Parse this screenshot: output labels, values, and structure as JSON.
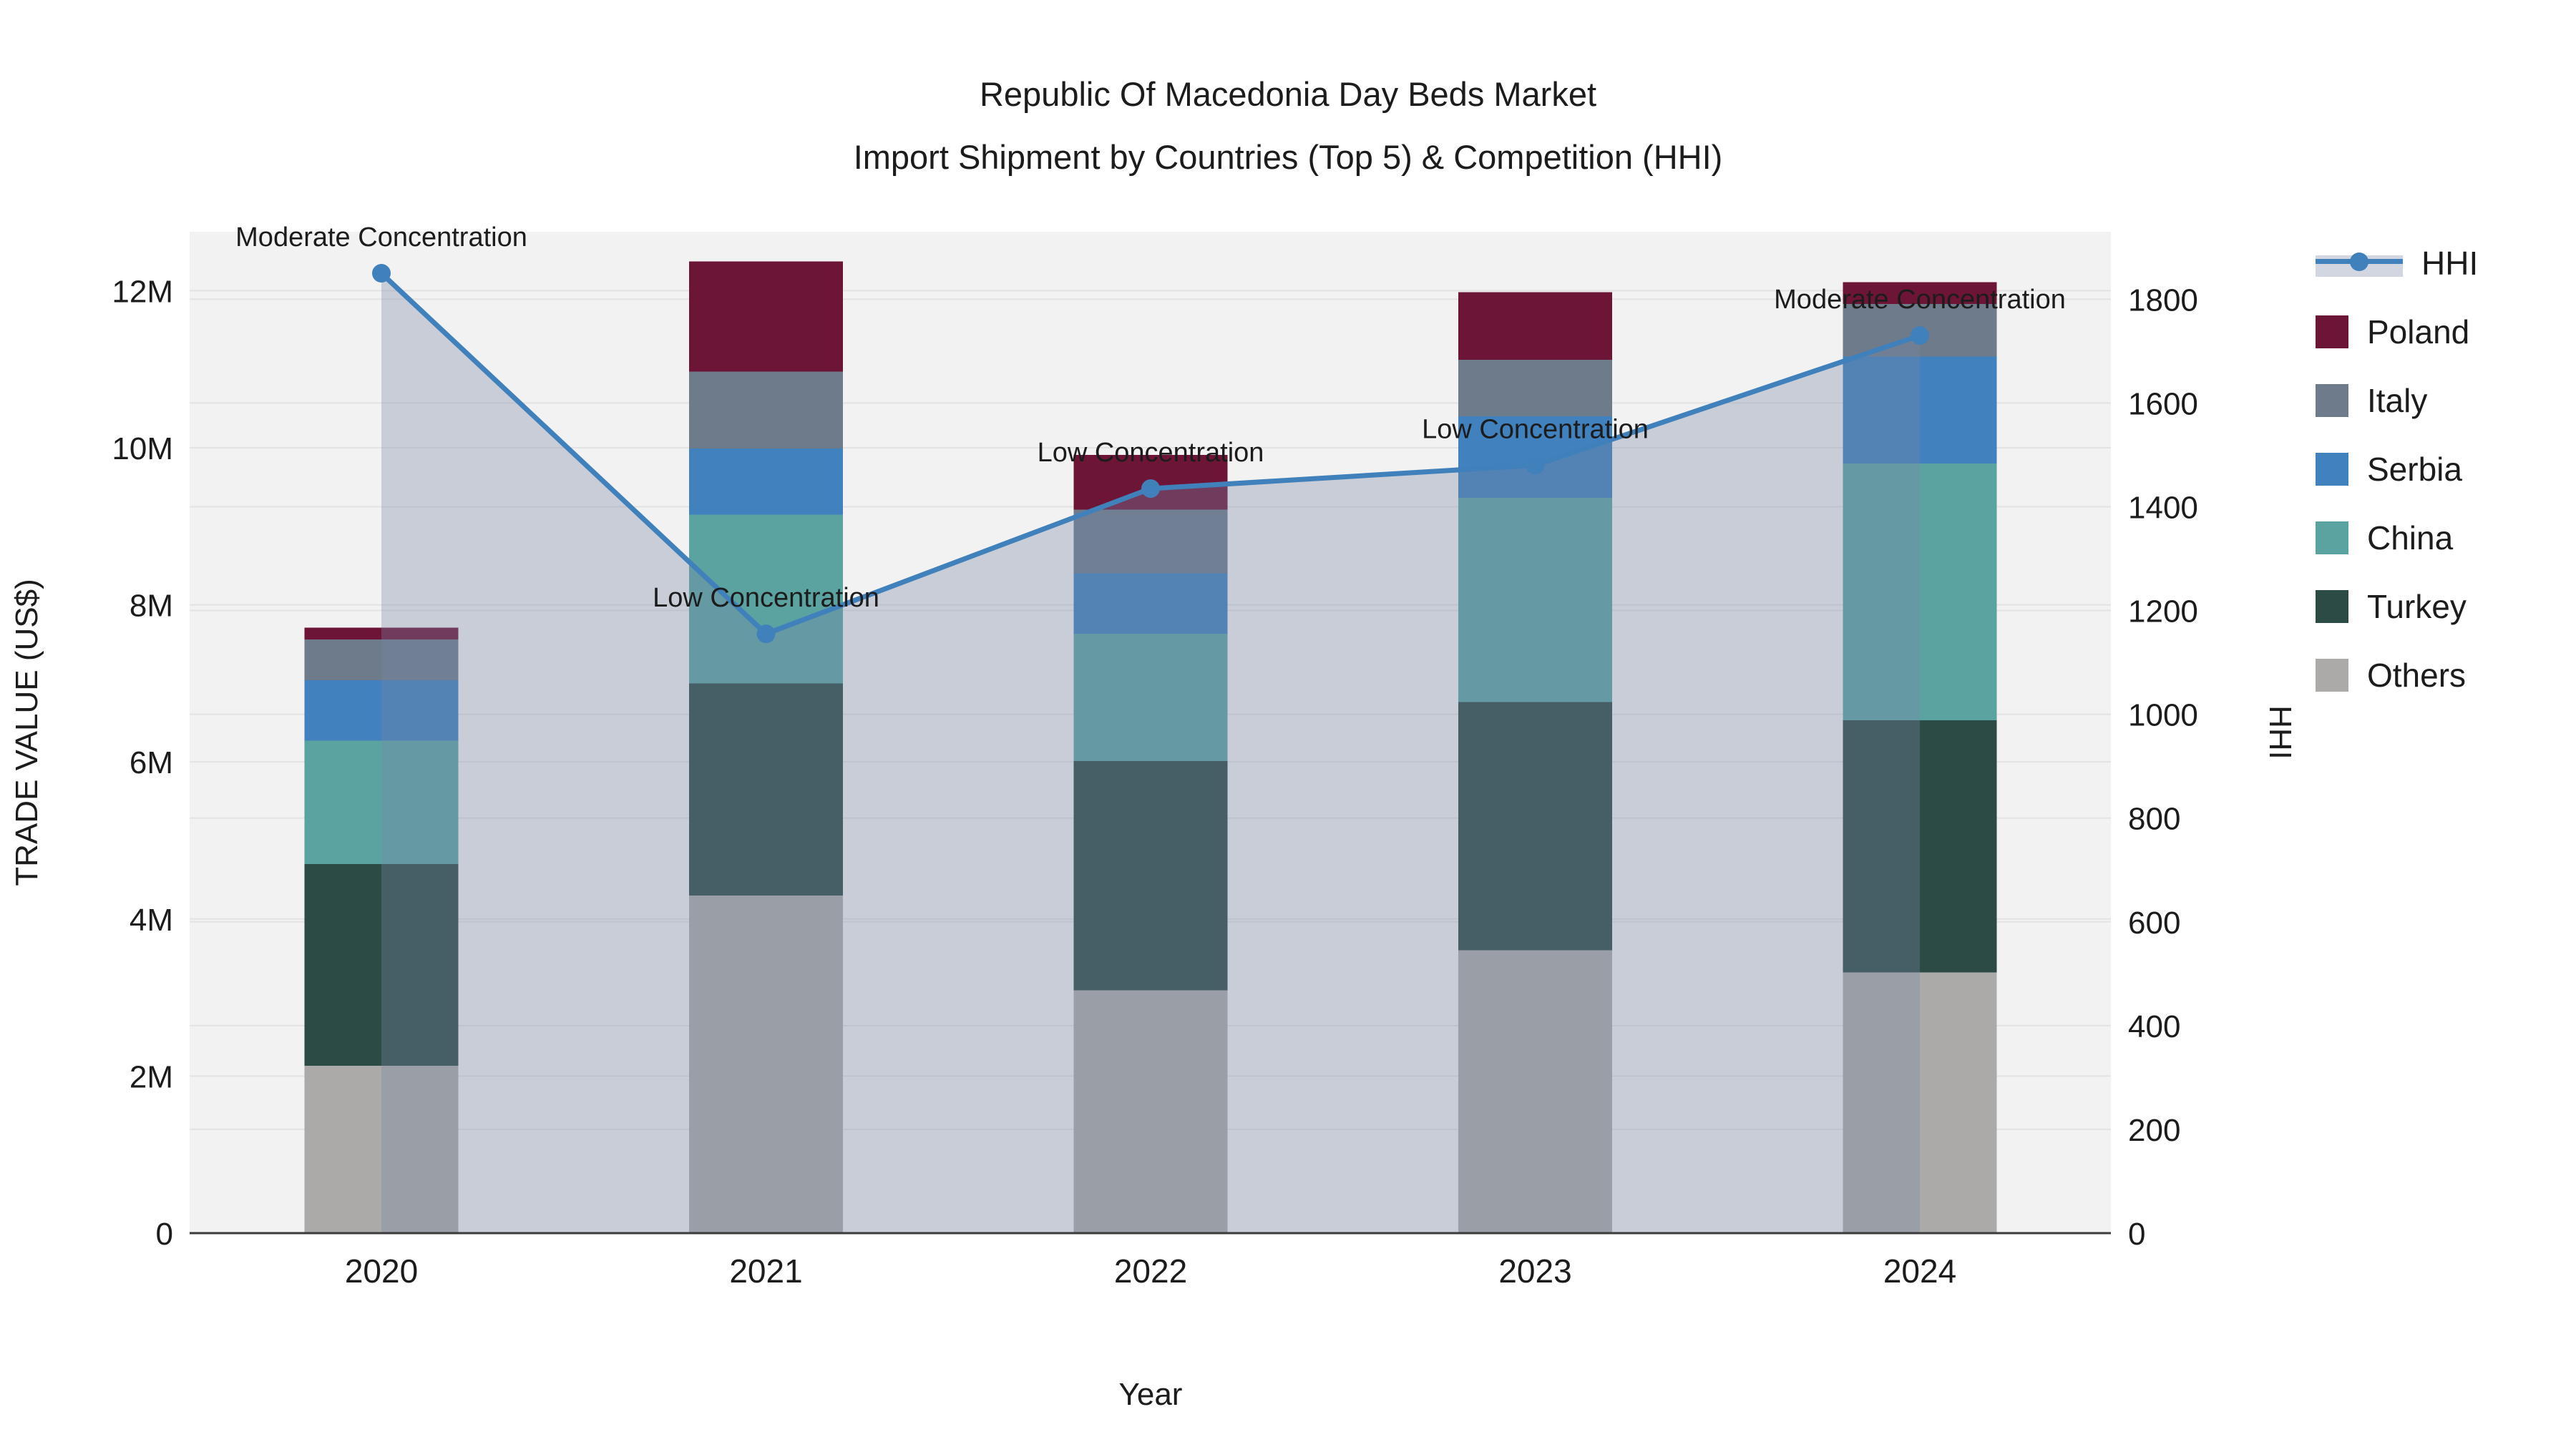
{
  "title": {
    "line1": "Republic Of Macedonia Day Beds Market",
    "line2": "Import Shipment by Countries (Top 5) & Competition (HHI)"
  },
  "axes": {
    "x": {
      "title": "Year"
    },
    "y_left": {
      "title": "TRADE VALUE (US$)"
    },
    "y_right": {
      "title": "HHI"
    }
  },
  "legend": {
    "items": [
      {
        "label": "HHI",
        "type": "line",
        "color": "#4181bb",
        "band": "#d1d6e1"
      },
      {
        "label": "Poland",
        "type": "swatch",
        "color": "#6d1537"
      },
      {
        "label": "Italy",
        "type": "swatch",
        "color": "#6e7b8b"
      },
      {
        "label": "Serbia",
        "type": "swatch",
        "color": "#4181bd"
      },
      {
        "label": "China",
        "type": "swatch",
        "color": "#5ba3a1"
      },
      {
        "label": "Turkey",
        "type": "swatch",
        "color": "#2c4b45"
      },
      {
        "label": "Others",
        "type": "swatch",
        "color": "#acaaa8"
      }
    ]
  },
  "chart_data": {
    "type": "bar+line",
    "categories": [
      "2020",
      "2021",
      "2022",
      "2023",
      "2024"
    ],
    "bar_value_unit": "million US$",
    "series": [
      {
        "name": "Others",
        "color": "#acaaa8",
        "values": [
          2.13,
          4.3,
          3.09,
          3.6,
          3.32
        ]
      },
      {
        "name": "Turkey",
        "color": "#2c4b45",
        "values": [
          2.57,
          2.7,
          2.92,
          3.16,
          3.21
        ]
      },
      {
        "name": "China",
        "color": "#5ba3a1",
        "values": [
          1.57,
          2.15,
          1.62,
          2.6,
          3.27
        ]
      },
      {
        "name": "Serbia",
        "color": "#4181bd",
        "values": [
          0.77,
          0.84,
          0.77,
          1.04,
          1.36
        ]
      },
      {
        "name": "Italy",
        "color": "#6e7b8b",
        "values": [
          0.52,
          0.98,
          0.81,
          0.72,
          0.67
        ]
      },
      {
        "name": "Poland",
        "color": "#6d1537",
        "values": [
          0.15,
          1.4,
          0.7,
          0.86,
          0.28
        ]
      }
    ],
    "stack_totals": [
      7.71,
      12.37,
      9.91,
      11.98,
      12.11
    ],
    "line_series": {
      "name": "HHI",
      "axis": "right",
      "color": "#4181bb",
      "area_fill": "rgba(120,135,168,0.34)",
      "values": [
        1850,
        1155,
        1435,
        1480,
        1730
      ]
    },
    "annotations": [
      {
        "category": "2020",
        "text": "Moderate Concentration"
      },
      {
        "category": "2021",
        "text": "Low Concentration"
      },
      {
        "category": "2022",
        "text": "Low Concentration"
      },
      {
        "category": "2023",
        "text": "Low Concentration"
      },
      {
        "category": "2024",
        "text": "Moderate Concentration"
      }
    ],
    "y_left_ticks": [
      "0",
      "2M",
      "4M",
      "6M",
      "8M",
      "10M",
      "12M"
    ],
    "y_left_tick_values_M": [
      0,
      2,
      4,
      6,
      8,
      10,
      12
    ],
    "y_right_ticks": [
      "0",
      "200",
      "400",
      "600",
      "800",
      "1000",
      "1200",
      "1400",
      "1600",
      "1800"
    ],
    "y_right_tick_values": [
      0,
      200,
      400,
      600,
      800,
      1000,
      1200,
      1400,
      1600,
      1800
    ],
    "ylim_left_M": [
      0,
      12.75
    ],
    "ylim_right": [
      0,
      1930
    ],
    "grid": true,
    "legend_position": "right",
    "plot_bg": "#f2f2f2",
    "grid_color": "#e3e3e3",
    "axisline_color": "#3b3b3b"
  }
}
